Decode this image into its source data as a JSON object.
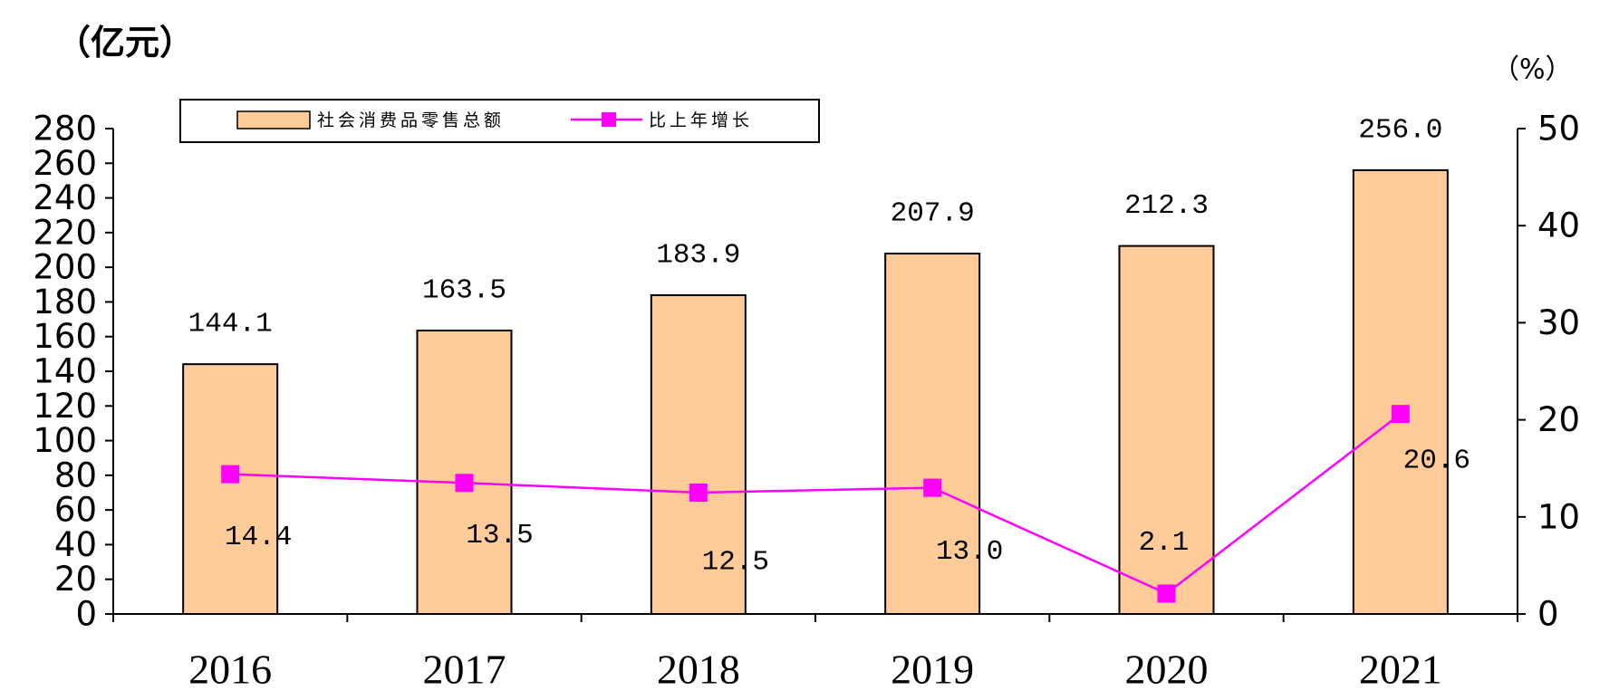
{
  "chart_data": {
    "type": "bar",
    "categories": [
      "2016",
      "2017",
      "2018",
      "2019",
      "2020",
      "2021"
    ],
    "series": [
      {
        "name": "社会消费品零售总额",
        "type": "bar",
        "axis": "left",
        "color": "#FFCC99",
        "edge_color": "#000000",
        "values": [
          144.1,
          163.5,
          183.9,
          207.9,
          212.3,
          256.0
        ],
        "labels": [
          "144.1",
          "163.5",
          "183.9",
          "207.9",
          "212.3",
          "256.0"
        ]
      },
      {
        "name": "比上年增长",
        "type": "line",
        "axis": "right",
        "color": "#FF00FF",
        "marker": "square",
        "values": [
          14.4,
          13.5,
          12.5,
          13.0,
          2.1,
          20.6
        ],
        "labels": [
          "14.4",
          "13.5",
          "12.5",
          "13.0",
          "2.1",
          "20.6"
        ]
      }
    ],
    "y_left": {
      "label": "（亿元）",
      "ylim": [
        0,
        280
      ],
      "ticks": [
        "0",
        "20",
        "40",
        "60",
        "80",
        "100",
        "120",
        "140",
        "160",
        "180",
        "200",
        "220",
        "240",
        "260",
        "280"
      ]
    },
    "y_right": {
      "label": "（%）",
      "ylim": [
        0,
        50
      ],
      "ticks": [
        "0",
        "10",
        "20",
        "30",
        "40",
        "50"
      ]
    },
    "legend": "top-left",
    "grid": false
  }
}
